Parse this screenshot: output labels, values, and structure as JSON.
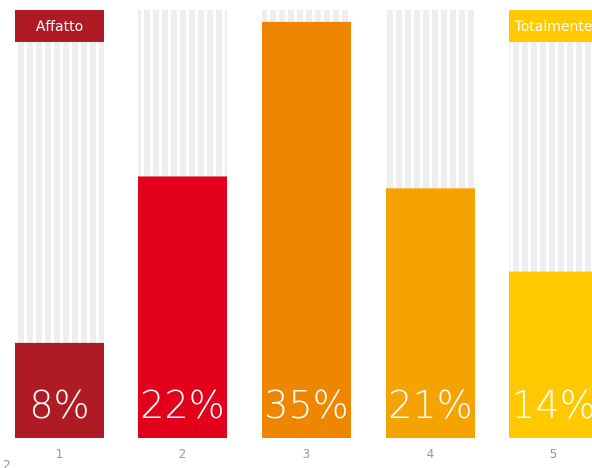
{
  "chart_data": {
    "type": "bar",
    "categories": [
      "1",
      "2",
      "3",
      "4",
      "5"
    ],
    "values": [
      8,
      22,
      35,
      21,
      14
    ],
    "value_labels": [
      "8%",
      "22%",
      "35%",
      "21%",
      "14%"
    ],
    "ylim": [
      0,
      36
    ],
    "scale_end_labels": {
      "low": "Affatto",
      "high": "Totalmente"
    },
    "colors": [
      "#AE1B24",
      "#E2001A",
      "#EE8600",
      "#F4A300",
      "#FFC900"
    ],
    "track_color": "#EEEEF0",
    "end_label_colors": {
      "low": "#AE1B24",
      "high": "#FFC900"
    },
    "grid": false,
    "legend": "none"
  }
}
